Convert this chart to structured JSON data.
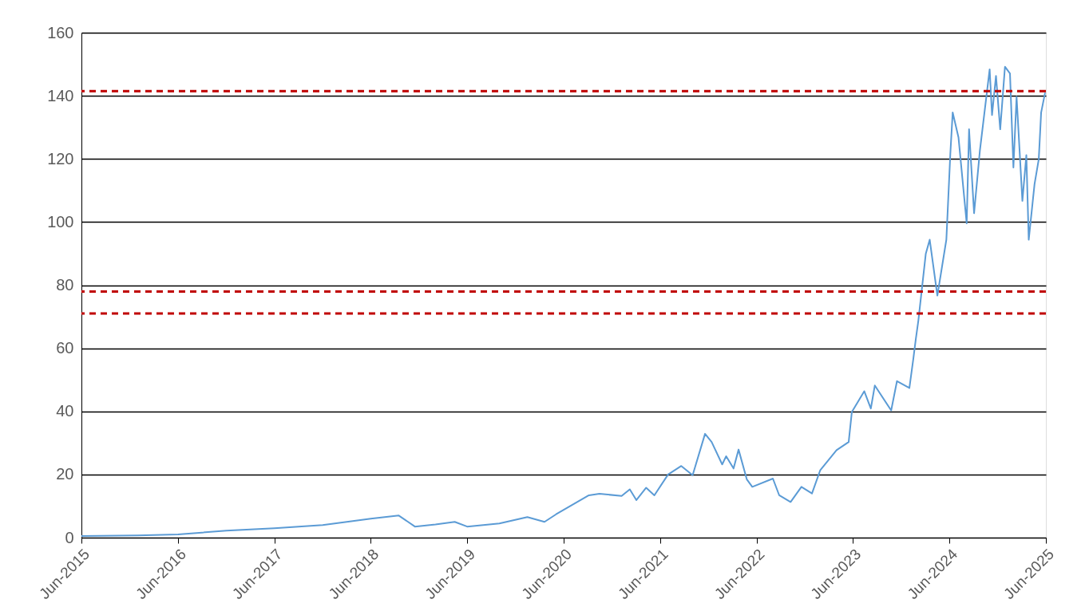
{
  "chart_data": {
    "type": "line",
    "x": [
      "2015-06-01",
      "2016-01-01",
      "2016-06-01",
      "2016-12-01",
      "2017-06-01",
      "2017-12-01",
      "2018-06-01",
      "2018-09-15",
      "2018-11-15",
      "2019-02-01",
      "2019-04-15",
      "2019-06-01",
      "2019-10-01",
      "2020-01-15",
      "2020-03-20",
      "2020-05-03",
      "2020-09-04",
      "2020-10-14",
      "2021-01-06",
      "2021-02-06",
      "2021-03-03",
      "2021-04-09",
      "2021-05-10",
      "2021-07-01",
      "2021-08-20",
      "2021-10-02",
      "2021-11-18",
      "2021-12-13",
      "2022-01-22",
      "2022-02-06",
      "2022-03-06",
      "2022-03-25",
      "2022-04-25",
      "2022-05-16",
      "2022-08-02",
      "2022-08-26",
      "2022-10-08",
      "2022-11-18",
      "2022-12-28",
      "2023-01-28",
      "2023-03-31",
      "2023-05-16",
      "2023-05-28",
      "2023-07-14",
      "2023-08-08",
      "2023-08-23",
      "2023-10-24",
      "2023-11-15",
      "2024-01-01",
      "2024-01-16",
      "2024-01-25",
      "2024-02-04",
      "2024-03-03",
      "2024-03-18",
      "2024-04-16",
      "2024-05-20",
      "2024-06-04",
      "2024-06-13",
      "2024-07-05",
      "2024-08-05",
      "2024-08-14",
      "2024-09-02",
      "2024-09-24",
      "2024-10-31",
      "2024-11-09",
      "2024-11-24",
      "2024-12-10",
      "2024-12-28",
      "2025-01-16",
      "2025-01-29",
      "2025-02-10",
      "2025-03-04",
      "2025-03-19",
      "2025-03-28",
      "2025-04-19",
      "2025-05-05",
      "2025-05-14",
      "2025-05-29"
    ],
    "series": [
      {
        "color": "#5b9bd5",
        "values": [
          0.5,
          0.7,
          1.0,
          2.2,
          3.0,
          4.0,
          6.0,
          7.0,
          3.5,
          4.2,
          5.0,
          3.5,
          4.5,
          6.5,
          5.0,
          7.4,
          13.4,
          13.9,
          13.2,
          15.3,
          11.9,
          15.8,
          13.4,
          20.0,
          22.7,
          19.8,
          32.9,
          30.3,
          23.2,
          25.8,
          21.9,
          27.9,
          18.5,
          16.1,
          18.7,
          13.4,
          11.3,
          16.1,
          14.0,
          21.3,
          27.7,
          30.3,
          39.8,
          46.4,
          40.9,
          48.2,
          40.3,
          49.6,
          47.4,
          56.7,
          62.7,
          68.8,
          89.9,
          94.4,
          76.7,
          94.4,
          121.5,
          134.7,
          126.8,
          99.6,
          129.4,
          102.8,
          122.6,
          148.4,
          133.9,
          146.3,
          129.4,
          149.2,
          147.1,
          117.3,
          139.7,
          106.7,
          121.2,
          94.4,
          112.0,
          119.9,
          134.7,
          141.0
        ]
      }
    ],
    "xlim": [
      "2015-06-01",
      "2025-06-01"
    ],
    "xticks": [
      {
        "value": "2015-06-01",
        "label": "Jun-2015"
      },
      {
        "value": "2016-06-01",
        "label": "Jun-2016"
      },
      {
        "value": "2017-06-01",
        "label": "Jun-2017"
      },
      {
        "value": "2018-06-01",
        "label": "Jun-2018"
      },
      {
        "value": "2019-06-01",
        "label": "Jun-2019"
      },
      {
        "value": "2020-06-01",
        "label": "Jun-2020"
      },
      {
        "value": "2021-06-01",
        "label": "Jun-2021"
      },
      {
        "value": "2022-06-01",
        "label": "Jun-2022"
      },
      {
        "value": "2023-06-01",
        "label": "Jun-2023"
      },
      {
        "value": "2024-06-01",
        "label": "Jun-2024"
      },
      {
        "value": "2025-06-01",
        "label": "Jun-2025"
      }
    ],
    "ylim": [
      0,
      160
    ],
    "yticks": [
      0,
      20,
      40,
      60,
      80,
      100,
      120,
      140,
      160
    ],
    "grid": "y",
    "line_style": "solid",
    "ref_lines": [
      {
        "axis": "y",
        "value": 141.5,
        "color": "#c00000",
        "line_style": "dashed"
      },
      {
        "axis": "y",
        "value": 78,
        "color": "#c00000",
        "line_style": "dashed"
      },
      {
        "axis": "y",
        "value": 71,
        "color": "#c00000",
        "line_style": "dashed"
      }
    ]
  }
}
